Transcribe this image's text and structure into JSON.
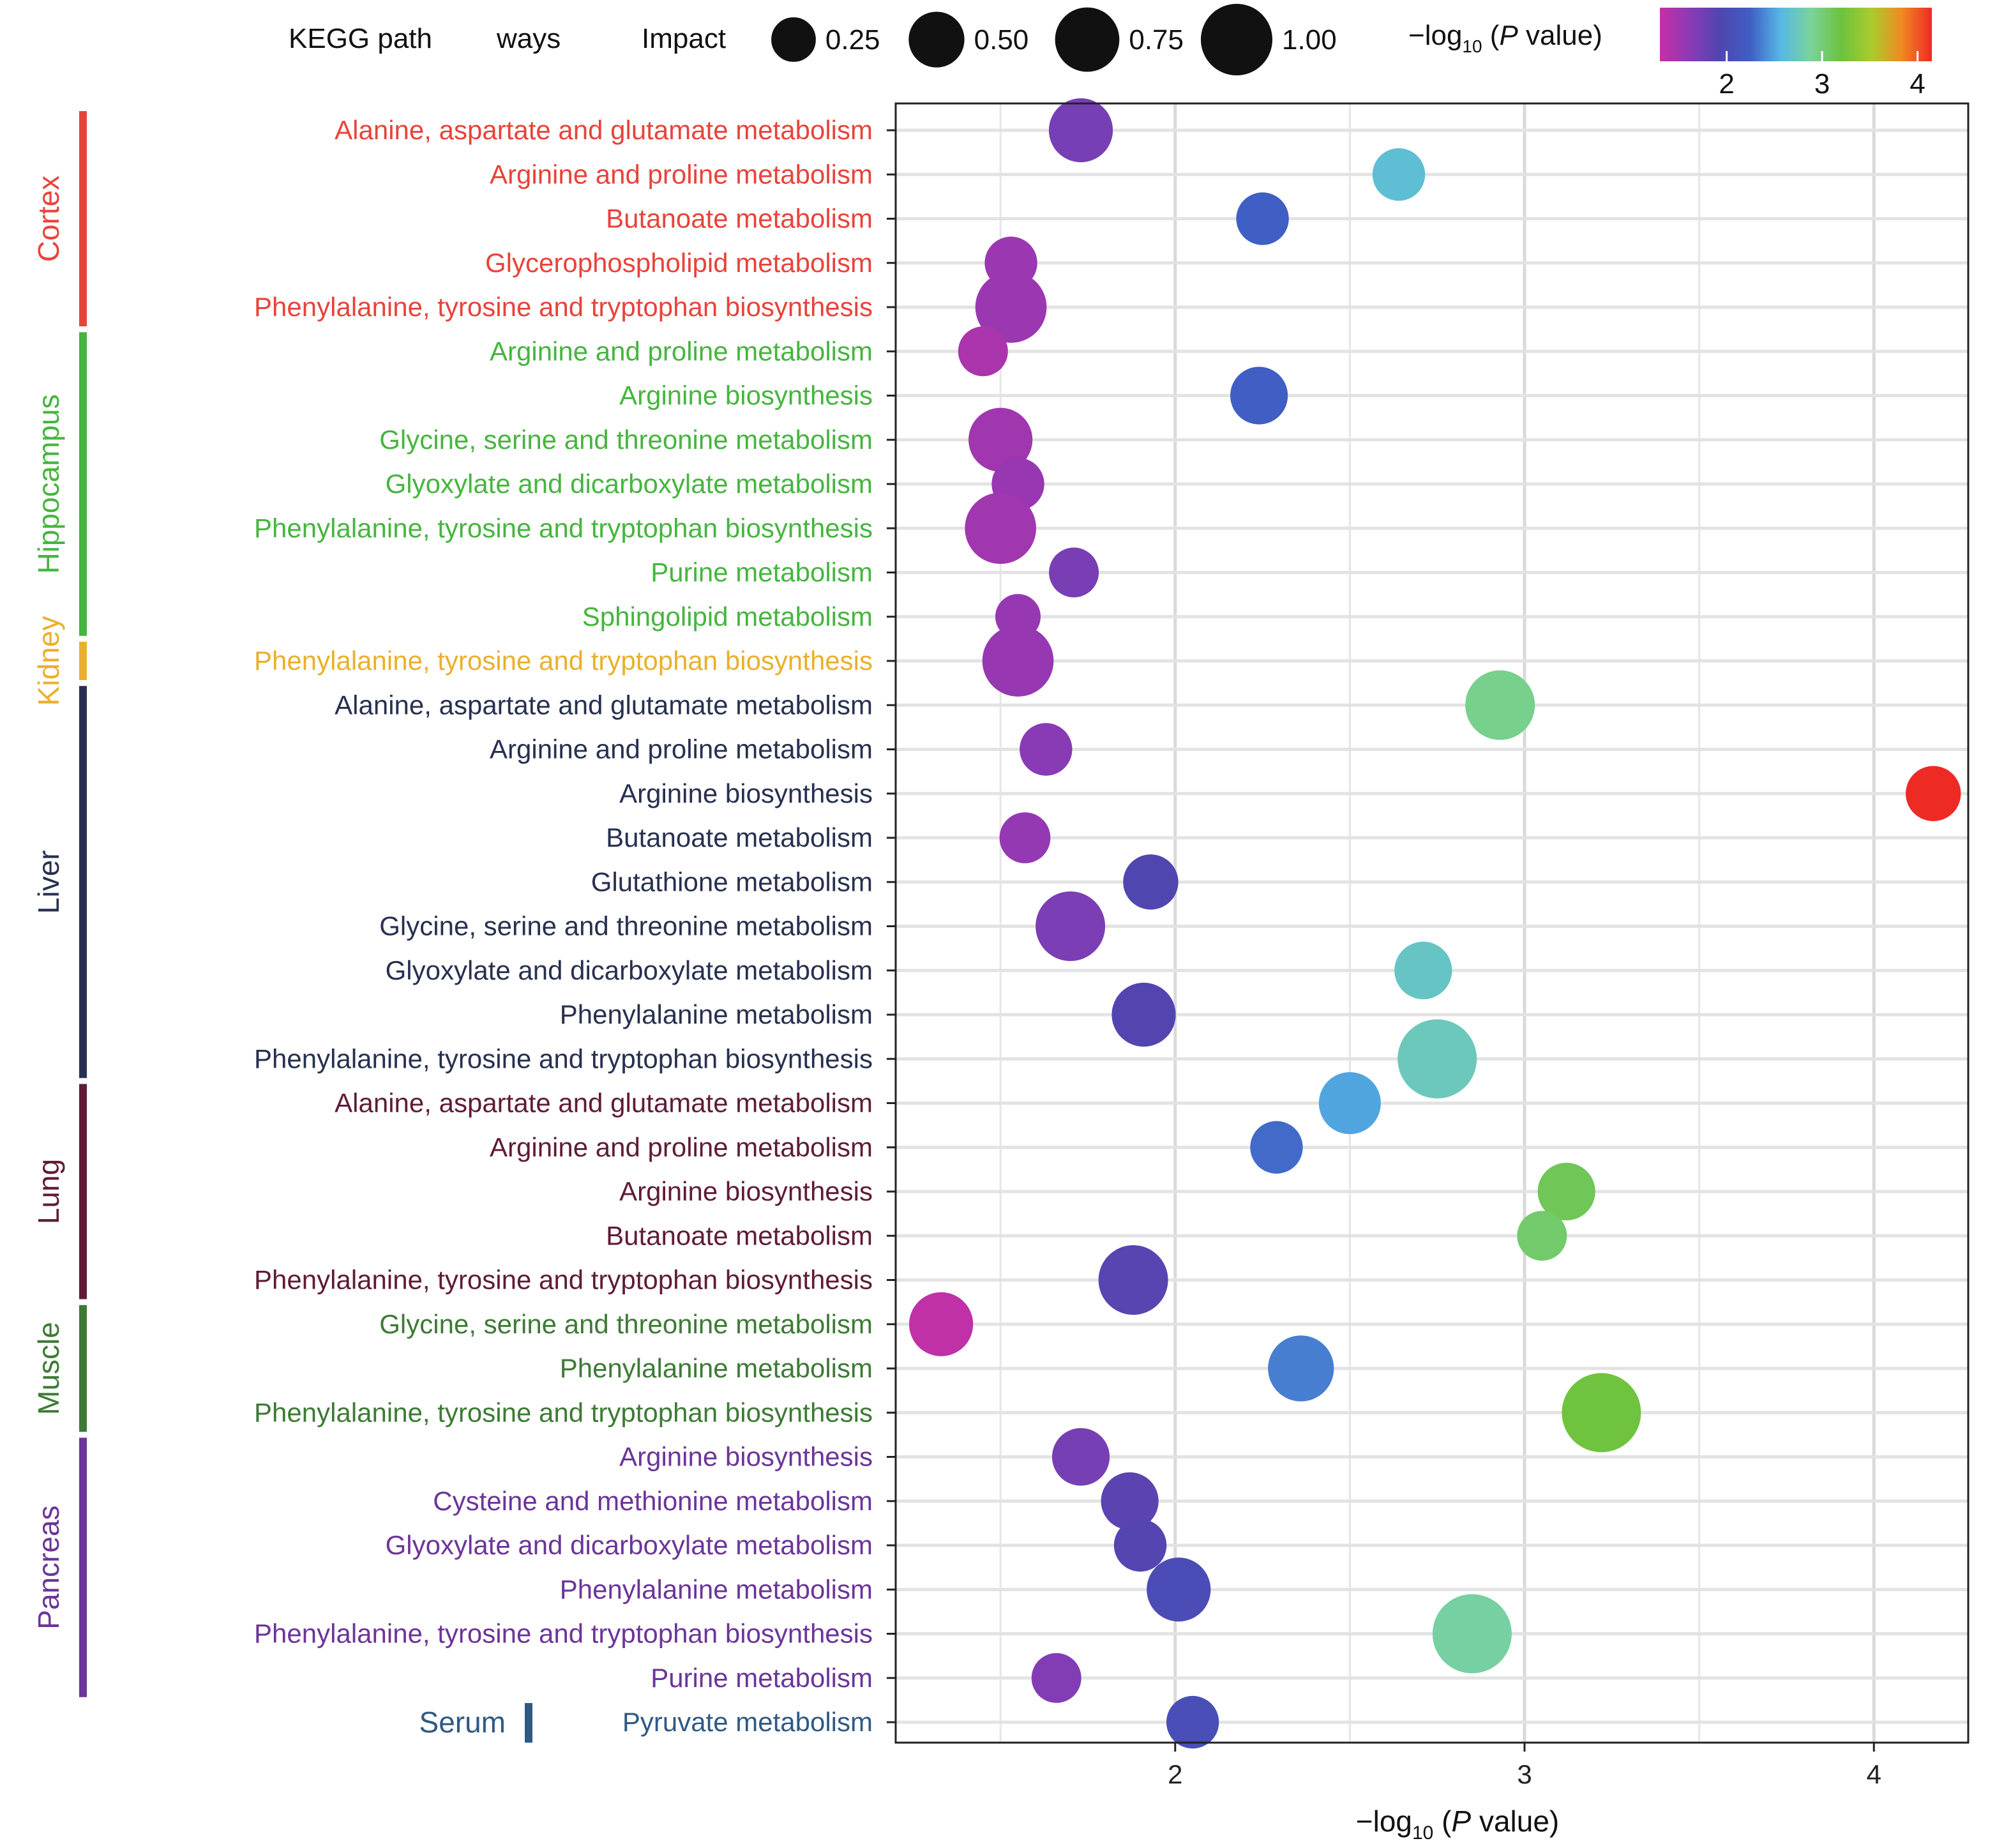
{
  "chart_data": {
    "type": "scatter",
    "legend": {
      "title_left": "KEGG path",
      "title_right": "ways",
      "impact_label": "Impact",
      "impact_values": [
        0.25,
        0.5,
        0.75,
        1.0
      ],
      "impact_labels": [
        "0.25",
        "0.50",
        "0.75",
        "1.00"
      ],
      "color_title_main": "−log",
      "color_title_sub": "10",
      "color_title_open": " (",
      "color_title_p": "P",
      "color_title_rest": " value)",
      "color_ticks": [
        2,
        3,
        4
      ],
      "color_range": [
        1.3,
        4.15
      ],
      "colors": [
        "#c52fa6",
        "#8b3bb5",
        "#4f46b0",
        "#3f5fc4",
        "#56b8e6",
        "#7ad39a",
        "#6cc23f",
        "#a9cc2c",
        "#f08a23",
        "#ee2a24"
      ]
    },
    "xlabel_main": "−log",
    "xlabel_sub": "10",
    "xlabel_open": " (",
    "xlabel_p": "P",
    "xlabel_rest": " value)",
    "x_ticks": [
      2,
      3,
      4
    ],
    "xlim": [
      1.2,
      4.27
    ],
    "groups": [
      {
        "name": "Cortex",
        "color": "#e8433a",
        "start": 0,
        "end": 4
      },
      {
        "name": "Hippocampus",
        "color": "#46b53f",
        "start": 5,
        "end": 11
      },
      {
        "name": "Kidney",
        "color": "#eab02b",
        "start": 12,
        "end": 12
      },
      {
        "name": "Liver",
        "color": "#27304f",
        "start": 13,
        "end": 21
      },
      {
        "name": "Lung",
        "color": "#5f1b37",
        "start": 22,
        "end": 26
      },
      {
        "name": "Muscle",
        "color": "#3d7a35",
        "start": 27,
        "end": 29
      },
      {
        "name": "Pancreas",
        "color": "#6b3599",
        "start": 30,
        "end": 35
      },
      {
        "name": "Serum",
        "color": "#2f5a84",
        "start": 36,
        "end": 36
      }
    ],
    "points": [
      {
        "label": "Alanine, aspartate and glutamate metabolism",
        "x": 1.73,
        "impact": 0.55
      },
      {
        "label": "Arginine and proline metabolism",
        "x": 2.64,
        "impact": 0.3
      },
      {
        "label": "Butanoate metabolism",
        "x": 2.25,
        "impact": 0.3
      },
      {
        "label": "Glycerophospholipid metabolism",
        "x": 1.53,
        "impact": 0.3
      },
      {
        "label": "Phenylalanine, tyrosine and tryptophan biosynthesis",
        "x": 1.53,
        "impact": 0.75
      },
      {
        "label": "Arginine and proline metabolism",
        "x": 1.45,
        "impact": 0.25
      },
      {
        "label": "Arginine biosynthesis",
        "x": 2.24,
        "impact": 0.4
      },
      {
        "label": "Glycine, serine and threonine metabolism",
        "x": 1.5,
        "impact": 0.55
      },
      {
        "label": "Glyoxylate and dicarboxylate metabolism",
        "x": 1.55,
        "impact": 0.3
      },
      {
        "label": "Phenylalanine, tyrosine and tryptophan biosynthesis",
        "x": 1.5,
        "impact": 0.75
      },
      {
        "label": "Purine metabolism",
        "x": 1.71,
        "impact": 0.25
      },
      {
        "label": "Sphingolipid metabolism",
        "x": 1.55,
        "impact": 0.18
      },
      {
        "label": "Phenylalanine, tyrosine and tryptophan biosynthesis",
        "x": 1.55,
        "impact": 0.75
      },
      {
        "label": "Alanine, aspartate and glutamate metabolism",
        "x": 2.93,
        "impact": 0.7
      },
      {
        "label": "Arginine and proline metabolism",
        "x": 1.63,
        "impact": 0.3
      },
      {
        "label": "Arginine biosynthesis",
        "x": 4.17,
        "impact": 0.35
      },
      {
        "label": "Butanoate metabolism",
        "x": 1.57,
        "impact": 0.27
      },
      {
        "label": "Glutathione metabolism",
        "x": 1.93,
        "impact": 0.35
      },
      {
        "label": "Glycine, serine and threonine metabolism",
        "x": 1.7,
        "impact": 0.7
      },
      {
        "label": "Glyoxylate and dicarboxylate metabolism",
        "x": 2.71,
        "impact": 0.4
      },
      {
        "label": "Phenylalanine metabolism",
        "x": 1.91,
        "impact": 0.55
      },
      {
        "label": "Phenylalanine, tyrosine and tryptophan biosynthesis",
        "x": 2.75,
        "impact": 1.0
      },
      {
        "label": "Alanine, aspartate and glutamate metabolism",
        "x": 2.5,
        "impact": 0.5
      },
      {
        "label": "Arginine and proline metabolism",
        "x": 2.29,
        "impact": 0.3
      },
      {
        "label": "Arginine biosynthesis",
        "x": 3.12,
        "impact": 0.4
      },
      {
        "label": "Butanoate metabolism",
        "x": 3.05,
        "impact": 0.25
      },
      {
        "label": "Phenylalanine, tyrosine and tryptophan biosynthesis",
        "x": 1.88,
        "impact": 0.7
      },
      {
        "label": "Glycine, serine and threonine metabolism",
        "x": 1.33,
        "impact": 0.55
      },
      {
        "label": "Phenylalanine metabolism",
        "x": 2.36,
        "impact": 0.6
      },
      {
        "label": "Phenylalanine, tyrosine and tryptophan biosynthesis",
        "x": 3.22,
        "impact": 1.0
      },
      {
        "label": "Arginine biosynthesis",
        "x": 1.73,
        "impact": 0.4
      },
      {
        "label": "Cysteine and methionine metabolism",
        "x": 1.87,
        "impact": 0.4
      },
      {
        "label": "Glyoxylate and dicarboxylate metabolism",
        "x": 1.9,
        "impact": 0.3
      },
      {
        "label": "Phenylalanine metabolism",
        "x": 2.01,
        "impact": 0.55
      },
      {
        "label": "Phenylalanine, tyrosine and tryptophan biosynthesis",
        "x": 2.85,
        "impact": 1.0
      },
      {
        "label": "Purine metabolism",
        "x": 1.66,
        "impact": 0.25
      },
      {
        "label": "Pyruvate metabolism",
        "x": 2.05,
        "impact": 0.3
      }
    ]
  }
}
